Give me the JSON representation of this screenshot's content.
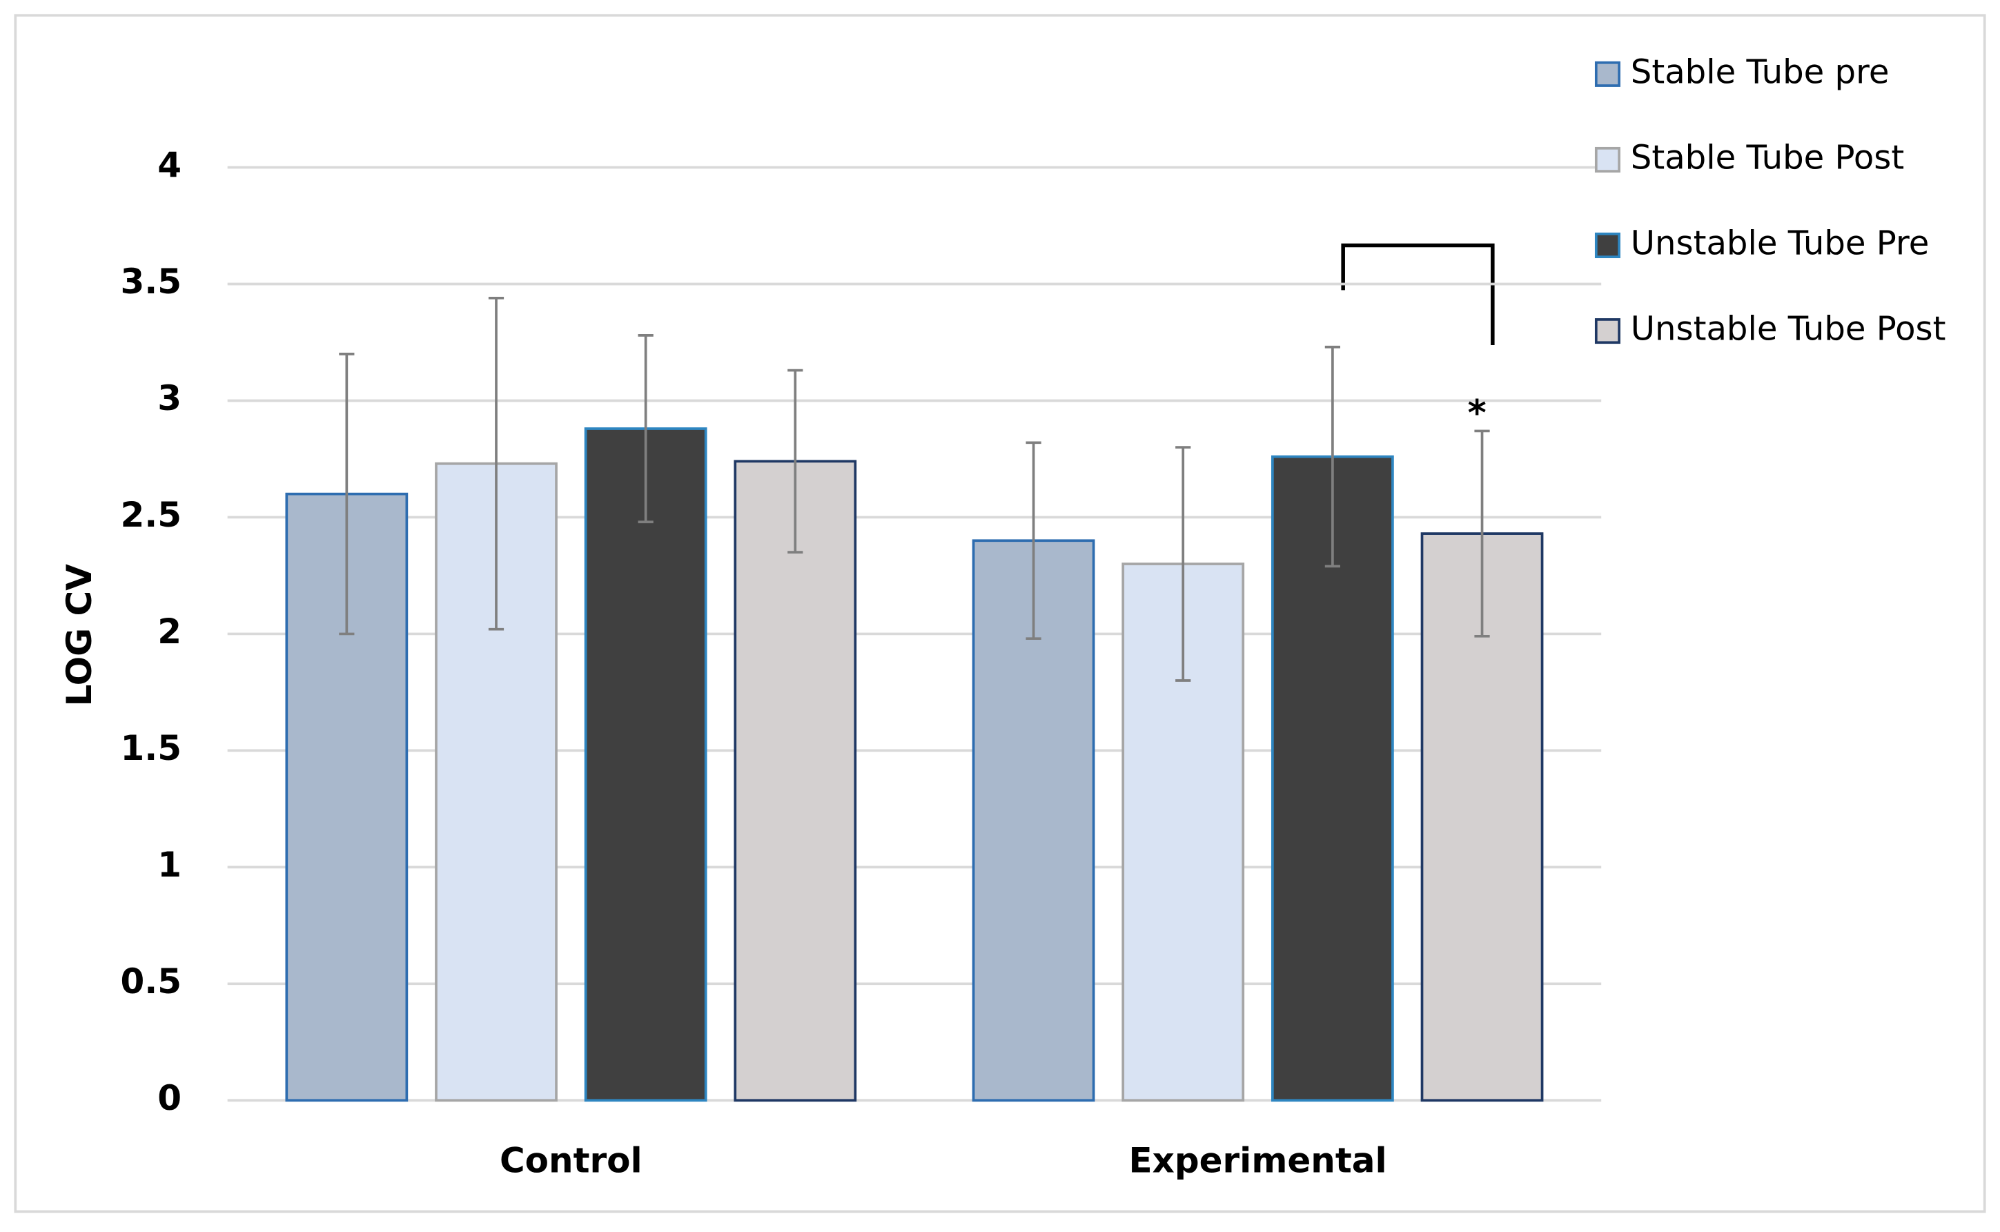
{
  "chart_data": {
    "type": "bar",
    "y_label": "LOG CV",
    "categories": [
      "Control",
      "Experimental"
    ],
    "series": [
      {
        "name": "Stable Tube pre",
        "color": "#a9b8cc",
        "values": [
          2.6,
          2.4
        ],
        "errors": [
          0.6,
          0.42
        ]
      },
      {
        "name": "Stable Tube Post",
        "color": "#d9e3f3",
        "values": [
          2.73,
          2.3
        ],
        "errors": [
          0.71,
          0.5
        ]
      },
      {
        "name": "Unstable Tube Pre",
        "color": "#404040",
        "values": [
          2.88,
          2.76
        ],
        "errors": [
          0.4,
          0.47
        ]
      },
      {
        "name": "Unstable Tube Post",
        "color": "#d4d0d0",
        "values": [
          2.74,
          2.43
        ],
        "errors": [
          0.39,
          0.44
        ]
      }
    ],
    "annotations": [
      "*"
    ],
    "ylim": [
      0,
      4
    ],
    "yticks": [
      0,
      0.5,
      1,
      1.5,
      2,
      2.5,
      3,
      3.5,
      4
    ],
    "grid": true,
    "legend": "right"
  }
}
